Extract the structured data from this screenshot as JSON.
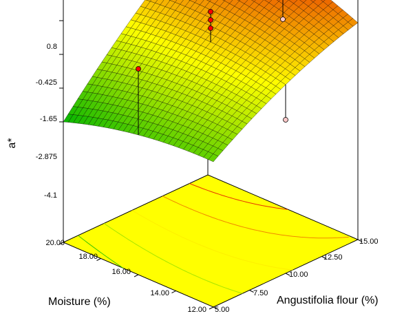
{
  "chart_data": {
    "type": "surface3d",
    "title": "",
    "zlabel": "a*",
    "xlabel": "Angustifolia flour (%)",
    "ylabel": "Moisture (%)",
    "z_ticks": [
      "0.8",
      "-0.425",
      "-1.65",
      "-2.875",
      "-4.1"
    ],
    "z_tick_values": [
      0.8,
      -0.425,
      -1.65,
      -2.875,
      -4.1
    ],
    "zlim": [
      -4.1,
      0.8
    ],
    "x_ticks": [
      "5.00",
      "7.50",
      "10.00",
      "12.50",
      "15.00"
    ],
    "x_tick_values": [
      5,
      7.5,
      10,
      12.5,
      15
    ],
    "xlim": [
      5,
      15
    ],
    "y_ticks": [
      "12.00",
      "14.00",
      "16.00",
      "18.00",
      "20.00"
    ],
    "y_tick_values": [
      12,
      14,
      16,
      18,
      20
    ],
    "ylim": [
      12,
      20
    ],
    "surface_corners": [
      {
        "x": 5,
        "y": 12,
        "z": -3.2
      },
      {
        "x": 15,
        "y": 12,
        "z": -0.6
      },
      {
        "x": 15,
        "y": 20,
        "z": 0.8
      },
      {
        "x": 5,
        "y": 20,
        "z": -4.1
      }
    ],
    "design_points": [
      {
        "x": 10,
        "y": 16,
        "z": -0.15
      },
      {
        "x": 10,
        "y": 16,
        "z": -0.45
      },
      {
        "x": 10,
        "y": 16,
        "z": -0.75
      },
      {
        "x": 5,
        "y": 16,
        "z": -1.0
      },
      {
        "x": 15,
        "y": 16,
        "z": -1.65
      },
      {
        "x": 10,
        "y": 12,
        "z": -2.9
      }
    ],
    "colors": {
      "low": "#00b400",
      "mid": "#ffff00",
      "high": "#e00000",
      "floor": "#ffff00",
      "point_above": "#ff0000",
      "point_below": "#ffc8c8"
    }
  }
}
